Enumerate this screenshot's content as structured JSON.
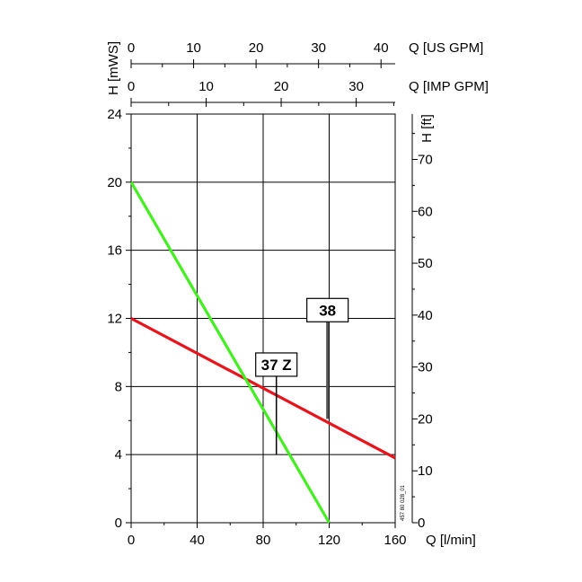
{
  "chart_data": {
    "type": "line",
    "x_axis": {
      "label": "Q [l/min]",
      "range": [
        0,
        160
      ],
      "ticks": [
        0,
        40,
        80,
        120,
        160
      ],
      "tick_labels": [
        "0",
        "40",
        "80",
        "120",
        "160"
      ]
    },
    "y_axis": {
      "label": "H [mWS]",
      "range": [
        0,
        24
      ],
      "ticks": [
        0,
        4,
        8,
        12,
        16,
        20,
        24
      ],
      "tick_labels": [
        "0",
        "4",
        "8",
        "12",
        "16",
        "20",
        "24"
      ]
    },
    "y2_axis": {
      "label": "H [ft]",
      "unit_ratio_ft_per_m": 3.28084,
      "ticks": [
        0,
        10,
        20,
        30,
        40,
        50,
        60,
        70
      ],
      "tick_labels": [
        "0",
        "10",
        "20",
        "30",
        "40",
        "50",
        "60",
        "70"
      ]
    },
    "top_axes": [
      {
        "label": "Q [US GPM]",
        "unit_l_per_min": 3.78541,
        "ticks": [
          0,
          10,
          20,
          30,
          40
        ],
        "tick_labels": [
          "0",
          "10",
          "20",
          "30",
          "40"
        ]
      },
      {
        "label": "Q [IMP GPM]",
        "unit_l_per_min": 4.54609,
        "ticks": [
          0,
          10,
          20,
          30
        ],
        "tick_labels": [
          "0",
          "10",
          "20",
          "30"
        ]
      }
    ],
    "grid": true,
    "series": [
      {
        "color": "#e8141c",
        "x": [
          0,
          160
        ],
        "y": [
          12,
          3.8
        ]
      },
      {
        "color": "#44ee22",
        "x": [
          0,
          120
        ],
        "y": [
          20,
          0
        ]
      }
    ],
    "annotations": [
      {
        "text": "37 Z",
        "x": 88,
        "y": 8.6,
        "y_end": 4
      },
      {
        "text": "38",
        "x": 119,
        "y": 11.8,
        "y_end": 6.1
      }
    ],
    "code_text": "457 80 028_01"
  }
}
